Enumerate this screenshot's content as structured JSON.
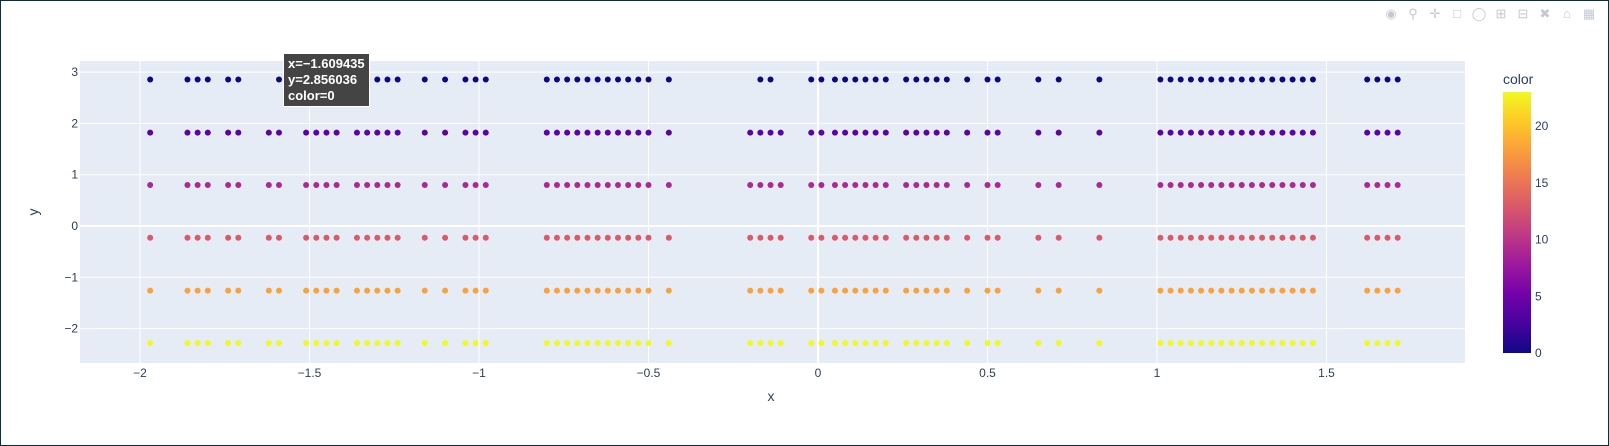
{
  "chart_data": {
    "type": "scatter",
    "xlabel": "x",
    "ylabel": "y",
    "xlim": [
      -2.2,
      1.9
    ],
    "ylim": [
      -2.65,
      3.2
    ],
    "xticks": [
      -2,
      -1.5,
      -1,
      -0.5,
      0,
      0.5,
      1,
      1.5
    ],
    "xtick_labels": [
      "−2",
      "−1.5",
      "−1",
      "−0.5",
      "0",
      "0.5",
      "1",
      "1.5"
    ],
    "yticks": [
      -2,
      -1,
      0,
      1,
      2,
      3
    ],
    "ytick_labels": [
      "−2",
      "−1",
      "0",
      "1",
      "2",
      "3"
    ],
    "grid": true,
    "x_values": [
      -1.97,
      -1.86,
      -1.83,
      -1.8,
      -1.74,
      -1.71,
      -1.62,
      -1.59,
      -1.51,
      -1.48,
      -1.45,
      -1.42,
      -1.36,
      -1.33,
      -1.3,
      -1.27,
      -1.24,
      -1.16,
      -1.1,
      -1.04,
      -1.01,
      -0.98,
      -0.8,
      -0.77,
      -0.74,
      -0.71,
      -0.68,
      -0.65,
      -0.62,
      -0.59,
      -0.56,
      -0.53,
      -0.5,
      -0.44,
      -0.2,
      -0.17,
      -0.14,
      -0.11,
      -0.02,
      0.01,
      0.05,
      0.08,
      0.11,
      0.14,
      0.17,
      0.2,
      0.26,
      0.29,
      0.32,
      0.35,
      0.38,
      0.44,
      0.5,
      0.53,
      0.65,
      0.71,
      0.83,
      1.01,
      1.04,
      1.07,
      1.1,
      1.13,
      1.16,
      1.19,
      1.22,
      1.25,
      1.28,
      1.31,
      1.34,
      1.37,
      1.4,
      1.43,
      1.46,
      1.62,
      1.65,
      1.68,
      1.71
    ],
    "rows": [
      {
        "y": 2.856036,
        "color": 0,
        "skip_x": [
          -1.62,
          -1.51,
          -1.48,
          -1.45,
          -0.2,
          -0.11
        ]
      },
      {
        "y": 1.82,
        "color": 4
      },
      {
        "y": 0.8,
        "color": 9
      },
      {
        "y": -0.23,
        "color": 13
      },
      {
        "y": -1.26,
        "color": 18
      },
      {
        "y": -2.28,
        "color": 23
      }
    ],
    "colorscale": [
      "#0d0887",
      "#46039f",
      "#7201a8",
      "#9c179e",
      "#bd3786",
      "#d8576b",
      "#ed7953",
      "#fb9f3a",
      "#fdca26",
      "#f0f921"
    ],
    "colorbar": {
      "title": "color",
      "min": 0,
      "max": 23,
      "ticks": [
        0,
        5,
        10,
        15,
        20
      ],
      "tick_labels": [
        "0",
        "5",
        "10",
        "15",
        "20"
      ]
    },
    "background": "#e5ecf6",
    "grid_color": "#ffffff"
  },
  "tooltip": {
    "x_line": "x=−1.609435",
    "y_line": "y=2.856036",
    "color_line": "color=0"
  },
  "modebar": [
    "camera-icon",
    "zoom-icon",
    "pan-icon",
    "box-select-icon",
    "lasso-icon",
    "zoom-in-icon",
    "zoom-out-icon",
    "autoscale-icon",
    "reset-icon",
    "table-icon"
  ]
}
